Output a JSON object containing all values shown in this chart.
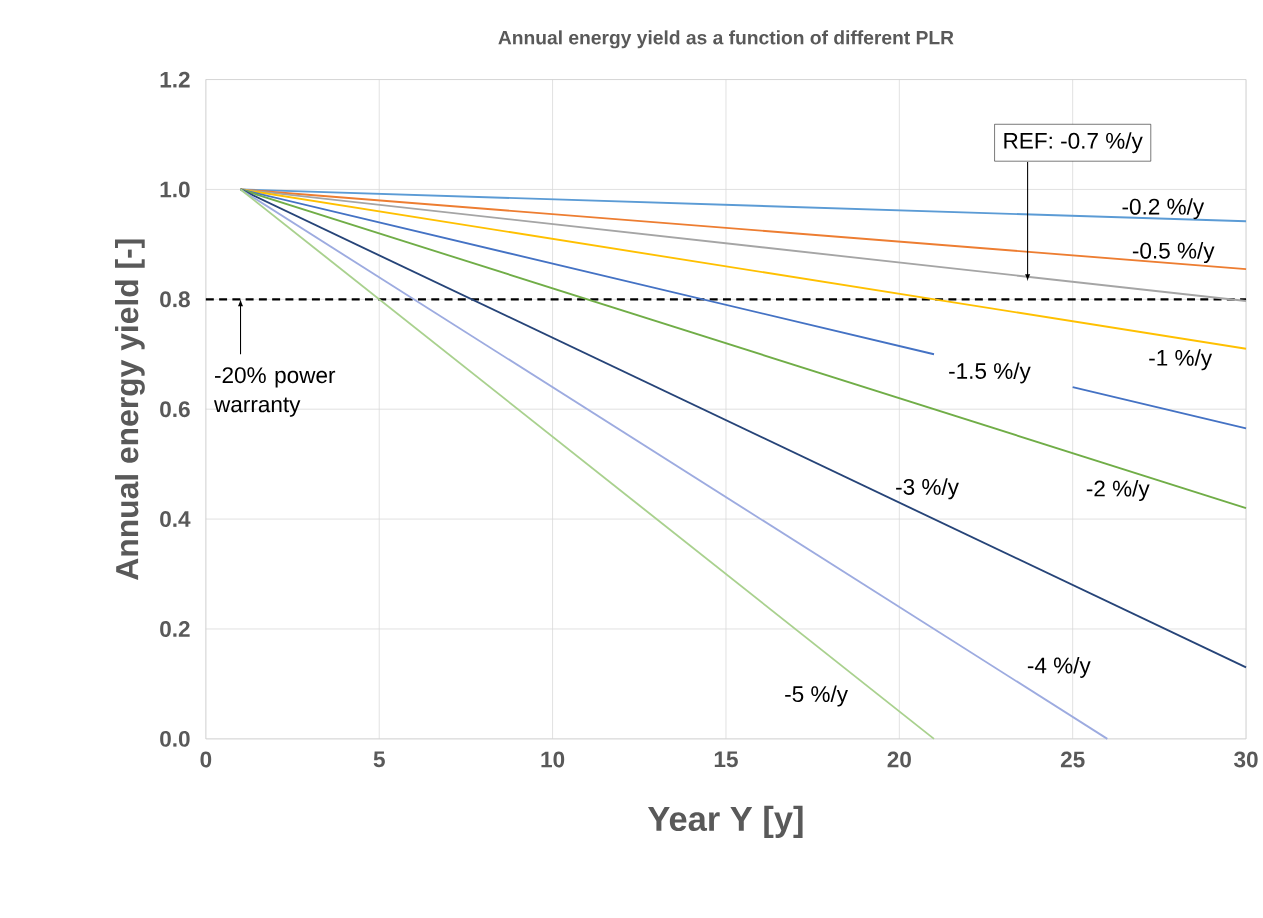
{
  "chart_data": {
    "type": "line",
    "title": "Annual energy yield as a function of different PLR",
    "xlabel": "Year Y [y]",
    "ylabel": "Annual energy yield [-]",
    "xlim": [
      0,
      30
    ],
    "xticks": [
      0,
      5,
      10,
      15,
      20,
      25,
      30
    ],
    "ylim": [
      0,
      1.2
    ],
    "yticks": [
      {
        "value": 0,
        "label": "0.0"
      },
      0.2,
      0.4,
      0.6,
      0.8,
      {
        "value": 1,
        "label": "1.0"
      },
      1.2
    ],
    "grid": true,
    "line_style": "solid",
    "series": [
      {
        "name": "-0.2 %/y",
        "color": "#5b9bd5",
        "x": [
          1,
          30
        ],
        "values": [
          1,
          0.942
        ]
      },
      {
        "name": "-0.5 %/y",
        "color": "#ed7d31",
        "x": [
          1,
          30
        ],
        "values": [
          1,
          0.855
        ]
      },
      {
        "name": "REF: -0.7 %/y",
        "color": "#a5a5a5",
        "x": [
          1,
          30
        ],
        "values": [
          1,
          0.797
        ]
      },
      {
        "name": "-1 %/y",
        "color": "#ffc000",
        "x": [
          1,
          30
        ],
        "values": [
          1,
          0.71
        ]
      },
      {
        "name": "-1.5 %/y",
        "color": "#4472c4",
        "x": [
          1,
          21,
          23,
          25,
          30
        ],
        "values": [
          1,
          0.7,
          null,
          0.64,
          0.565
        ]
      },
      {
        "name": "-2 %/y",
        "color": "#70ad47",
        "x": [
          1,
          30
        ],
        "values": [
          1,
          0.42
        ]
      },
      {
        "name": "-3 %/y",
        "color": "#264478",
        "x": [
          1,
          30
        ],
        "values": [
          1,
          0.13
        ]
      },
      {
        "name": "-4 %/y",
        "color": "#9dabe0",
        "x": [
          1,
          26
        ],
        "values": [
          1,
          0
        ]
      },
      {
        "name": "-5 %/y",
        "color": "#a9d18e",
        "x": [
          1,
          21
        ],
        "values": [
          1,
          0
        ]
      }
    ],
    "ref_lines": [
      {
        "axis": "y",
        "value": 0.8,
        "label": "-20% power warranty",
        "color": "#000000",
        "line_style": "dashed"
      }
    ]
  }
}
